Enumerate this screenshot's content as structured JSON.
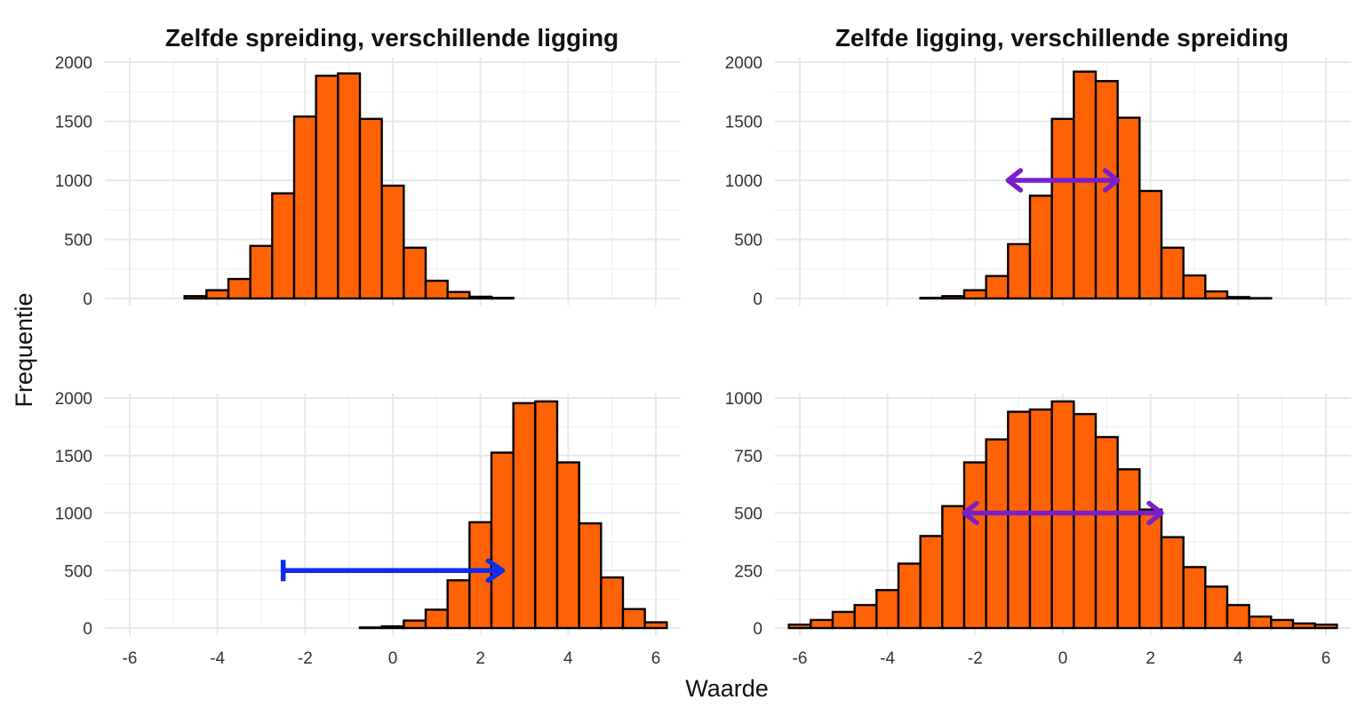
{
  "figure": {
    "xlabel": "Waarde",
    "ylabel": "Frequentie",
    "titles": [
      "Zelfde spreiding, verschillende ligging",
      "Zelfde ligging, verschillende spreiding"
    ],
    "bar_fill": "#ff6205",
    "bar_outline": "#000000",
    "shift_arrow_color": "#0a2cf0",
    "spread_arrow_color": "#7a1fc9"
  },
  "chart_data": [
    {
      "type": "bar",
      "panel": "top-left",
      "title": "Zelfde spreiding, verschillende ligging",
      "bin_width": 0.5,
      "bin_centers": [
        -6,
        -5.5,
        -5,
        -4.5,
        -4,
        -3.5,
        -3,
        -2.5,
        -2,
        -1.5,
        -1,
        -0.5,
        0,
        0.5,
        1,
        1.5,
        2,
        2.5,
        3,
        3.5,
        4,
        4.5,
        5,
        5.5,
        6
      ],
      "values": [
        0,
        0,
        0,
        20,
        70,
        165,
        445,
        890,
        1540,
        1885,
        1905,
        1520,
        955,
        430,
        150,
        55,
        15,
        5,
        0,
        0,
        0,
        0,
        0,
        0,
        0
      ],
      "ylim": [
        0,
        2000
      ],
      "yticks": [
        0,
        500,
        1000,
        1500,
        2000
      ],
      "xlim": [
        -6,
        6
      ],
      "xticks": [
        -6,
        -4,
        -2,
        0,
        2,
        4,
        6
      ],
      "show_xtick_labels": false
    },
    {
      "type": "bar",
      "panel": "top-right",
      "title": "Zelfde ligging, verschillende spreiding",
      "bin_width": 0.5,
      "bin_centers": [
        -6,
        -5.5,
        -5,
        -4.5,
        -4,
        -3.5,
        -3,
        -2.5,
        -2,
        -1.5,
        -1,
        -0.5,
        0,
        0.5,
        1,
        1.5,
        2,
        2.5,
        3,
        3.5,
        4,
        4.5,
        5,
        5.5,
        6
      ],
      "values": [
        0,
        0,
        0,
        0,
        0,
        0,
        5,
        20,
        70,
        190,
        460,
        870,
        1520,
        1920,
        1840,
        1530,
        910,
        430,
        195,
        60,
        12,
        3,
        0,
        0,
        0
      ],
      "ylim": [
        0,
        2000
      ],
      "yticks": [
        0,
        500,
        1000,
        1500,
        2000
      ],
      "xlim": [
        -6,
        6
      ],
      "xticks": [
        -6,
        -4,
        -2,
        0,
        2,
        4,
        6
      ],
      "show_xtick_labels": false,
      "annotation": {
        "type": "double-arrow",
        "x_from": -1.25,
        "x_to": 1.25,
        "y": 1000
      }
    },
    {
      "type": "bar",
      "panel": "bottom-left",
      "bin_width": 0.5,
      "bin_centers": [
        -6,
        -5.5,
        -5,
        -4.5,
        -4,
        -3.5,
        -3,
        -2.5,
        -2,
        -1.5,
        -1,
        -0.5,
        0,
        0.5,
        1,
        1.5,
        2,
        2.5,
        3,
        3.5,
        4,
        4.5,
        5,
        5.5,
        6
      ],
      "values": [
        0,
        0,
        0,
        0,
        0,
        0,
        0,
        0,
        0,
        0,
        0,
        5,
        15,
        65,
        160,
        415,
        920,
        1525,
        1955,
        1970,
        1440,
        910,
        440,
        165,
        50
      ],
      "ylim": [
        0,
        2000
      ],
      "yticks": [
        0,
        500,
        1000,
        1500,
        2000
      ],
      "xlim": [
        -6,
        6
      ],
      "xticks": [
        -6,
        -4,
        -2,
        0,
        2,
        4,
        6
      ],
      "show_xtick_labels": true,
      "annotation": {
        "type": "shift-arrow",
        "x_from": -2.5,
        "x_to": 2.5,
        "y": 500
      }
    },
    {
      "type": "bar",
      "panel": "bottom-right",
      "bin_width": 0.5,
      "bin_centers": [
        -6,
        -5.5,
        -5,
        -4.5,
        -4,
        -3.5,
        -3,
        -2.5,
        -2,
        -1.5,
        -1,
        -0.5,
        0,
        0.5,
        1,
        1.5,
        2,
        2.5,
        3,
        3.5,
        4,
        4.5,
        5,
        5.5,
        6
      ],
      "values": [
        15,
        35,
        70,
        100,
        165,
        280,
        400,
        530,
        720,
        820,
        940,
        950,
        985,
        930,
        830,
        690,
        515,
        395,
        265,
        180,
        100,
        50,
        35,
        20,
        15
      ],
      "ylim": [
        0,
        1000
      ],
      "yticks": [
        0,
        250,
        500,
        750,
        1000
      ],
      "xlim": [
        -6,
        6
      ],
      "xticks": [
        -6,
        -4,
        -2,
        0,
        2,
        4,
        6
      ],
      "show_xtick_labels": true,
      "annotation": {
        "type": "double-arrow",
        "x_from": -2.25,
        "x_to": 2.25,
        "y": 500
      }
    }
  ]
}
